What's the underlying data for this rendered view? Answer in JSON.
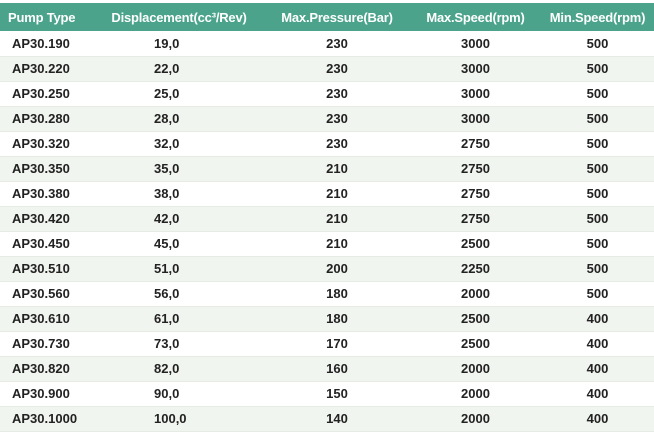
{
  "table": {
    "headers": [
      "Pump Type",
      "Displacement(cc³/Rev)",
      "Max.Pressure(Bar)",
      "Max.Speed(rpm)",
      "Min.Speed(rpm)"
    ],
    "header_color": "#4aa38a",
    "stripe_color": "#f1f5ef",
    "rows": [
      [
        "AP30.190",
        "19,0",
        "230",
        "3000",
        "500"
      ],
      [
        "AP30.220",
        "22,0",
        "230",
        "3000",
        "500"
      ],
      [
        "AP30.250",
        "25,0",
        "230",
        "3000",
        "500"
      ],
      [
        "AP30.280",
        "28,0",
        "230",
        "3000",
        "500"
      ],
      [
        "AP30.320",
        "32,0",
        "230",
        "2750",
        "500"
      ],
      [
        "AP30.350",
        "35,0",
        "210",
        "2750",
        "500"
      ],
      [
        "AP30.380",
        "38,0",
        "210",
        "2750",
        "500"
      ],
      [
        "AP30.420",
        "42,0",
        "210",
        "2750",
        "500"
      ],
      [
        "AP30.450",
        "45,0",
        "210",
        "2500",
        "500"
      ],
      [
        "AP30.510",
        "51,0",
        "200",
        "2250",
        "500"
      ],
      [
        "AP30.560",
        "56,0",
        "180",
        "2000",
        "500"
      ],
      [
        "AP30.610",
        "61,0",
        "180",
        "2500",
        "400"
      ],
      [
        "AP30.730",
        "73,0",
        "170",
        "2500",
        "400"
      ],
      [
        "AP30.820",
        "82,0",
        "160",
        "2000",
        "400"
      ],
      [
        "AP30.900",
        "90,0",
        "150",
        "2000",
        "400"
      ],
      [
        "AP30.1000",
        "100,0",
        "140",
        "2000",
        "400"
      ]
    ]
  }
}
